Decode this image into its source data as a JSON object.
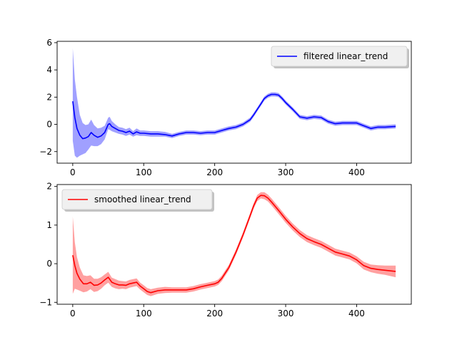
{
  "chart_data": [
    {
      "type": "line",
      "title": "",
      "xlabel": "",
      "ylabel": "",
      "xlim": [
        -22,
        477
      ],
      "ylim": [
        -2.85,
        6.1
      ],
      "xticks": [
        0,
        100,
        200,
        300,
        400
      ],
      "yticks": [
        -2,
        0,
        2,
        4,
        6
      ],
      "grid": false,
      "legend_position": "top-right",
      "line_color": "#0000ff",
      "band_color": "#a0a0ff",
      "series": [
        {
          "name": "filtered linear_trend",
          "x": [
            0,
            3,
            6,
            10,
            14,
            18,
            22,
            26,
            30,
            35,
            40,
            45,
            50,
            52,
            55,
            60,
            65,
            70,
            75,
            80,
            85,
            90,
            95,
            100,
            110,
            120,
            130,
            140,
            150,
            160,
            170,
            180,
            190,
            200,
            210,
            220,
            230,
            240,
            250,
            255,
            260,
            265,
            270,
            275,
            280,
            285,
            290,
            295,
            300,
            310,
            320,
            330,
            340,
            350,
            360,
            370,
            380,
            390,
            400,
            410,
            420,
            430,
            440,
            455
          ],
          "y": [
            1.7,
            0.5,
            -0.3,
            -0.8,
            -1.05,
            -1.0,
            -0.9,
            -0.6,
            -0.8,
            -0.95,
            -0.85,
            -0.6,
            0.0,
            0.05,
            -0.15,
            -0.3,
            -0.45,
            -0.5,
            -0.6,
            -0.5,
            -0.7,
            -0.55,
            -0.65,
            -0.65,
            -0.7,
            -0.7,
            -0.75,
            -0.85,
            -0.7,
            -0.6,
            -0.6,
            -0.65,
            -0.6,
            -0.6,
            -0.45,
            -0.3,
            -0.2,
            0.0,
            0.35,
            0.7,
            1.1,
            1.5,
            1.9,
            2.1,
            2.2,
            2.2,
            2.15,
            1.9,
            1.6,
            1.1,
            0.55,
            0.45,
            0.55,
            0.5,
            0.2,
            0.05,
            0.1,
            0.1,
            0.1,
            -0.1,
            -0.3,
            -0.2,
            -0.2,
            -0.15
          ],
          "lower": [
            -1.2,
            -2.3,
            -2.45,
            -2.3,
            -2.2,
            -2.1,
            -1.85,
            -1.55,
            -1.6,
            -1.6,
            -1.45,
            -1.1,
            -0.35,
            -0.4,
            -0.5,
            -0.6,
            -0.7,
            -0.75,
            -0.85,
            -0.75,
            -0.9,
            -0.8,
            -0.85,
            -0.85,
            -0.9,
            -0.9,
            -0.9,
            -1.0,
            -0.85,
            -0.75,
            -0.75,
            -0.8,
            -0.75,
            -0.75,
            -0.6,
            -0.45,
            -0.35,
            -0.15,
            0.2,
            0.55,
            0.95,
            1.35,
            1.75,
            1.95,
            2.05,
            2.05,
            2.0,
            1.75,
            1.45,
            0.95,
            0.4,
            0.3,
            0.4,
            0.35,
            0.05,
            -0.1,
            -0.05,
            -0.05,
            -0.05,
            -0.25,
            -0.45,
            -0.35,
            -0.35,
            -0.3
          ],
          "upper": [
            5.6,
            3.3,
            2.0,
            0.7,
            0.1,
            -0.05,
            0.0,
            0.35,
            -0.05,
            -0.3,
            -0.25,
            -0.1,
            0.5,
            0.55,
            0.25,
            0.0,
            -0.2,
            -0.25,
            -0.35,
            -0.25,
            -0.5,
            -0.3,
            -0.45,
            -0.45,
            -0.5,
            -0.5,
            -0.55,
            -0.7,
            -0.55,
            -0.45,
            -0.45,
            -0.5,
            -0.45,
            -0.45,
            -0.3,
            -0.15,
            -0.05,
            0.15,
            0.5,
            0.85,
            1.25,
            1.65,
            2.05,
            2.25,
            2.35,
            2.35,
            2.3,
            2.05,
            1.75,
            1.25,
            0.7,
            0.6,
            0.7,
            0.65,
            0.35,
            0.2,
            0.25,
            0.25,
            0.25,
            0.05,
            -0.15,
            -0.05,
            -0.05,
            0.0
          ]
        }
      ]
    },
    {
      "type": "line",
      "title": "",
      "xlabel": "",
      "ylabel": "",
      "xlim": [
        -22,
        477
      ],
      "ylim": [
        -1.05,
        2.05
      ],
      "xticks": [
        0,
        100,
        200,
        300,
        400
      ],
      "yticks": [
        -1,
        0,
        1,
        2
      ],
      "grid": false,
      "legend_position": "top-left",
      "line_color": "#ff0000",
      "band_color": "#ffa0a0",
      "series": [
        {
          "name": "smoothed linear_trend",
          "x": [
            0,
            3,
            6,
            10,
            15,
            20,
            25,
            30,
            35,
            40,
            45,
            50,
            55,
            60,
            65,
            70,
            75,
            80,
            85,
            90,
            95,
            100,
            105,
            110,
            120,
            130,
            140,
            150,
            160,
            170,
            180,
            190,
            200,
            205,
            210,
            220,
            230,
            240,
            250,
            255,
            260,
            265,
            270,
            275,
            280,
            290,
            300,
            310,
            320,
            330,
            340,
            350,
            360,
            370,
            380,
            390,
            400,
            410,
            420,
            430,
            440,
            455
          ],
          "y": [
            0.22,
            -0.05,
            -0.25,
            -0.4,
            -0.52,
            -0.52,
            -0.48,
            -0.56,
            -0.55,
            -0.5,
            -0.42,
            -0.35,
            -0.48,
            -0.52,
            -0.55,
            -0.55,
            -0.56,
            -0.52,
            -0.5,
            -0.48,
            -0.58,
            -0.65,
            -0.72,
            -0.75,
            -0.7,
            -0.68,
            -0.68,
            -0.68,
            -0.68,
            -0.65,
            -0.6,
            -0.56,
            -0.52,
            -0.48,
            -0.38,
            -0.1,
            0.3,
            0.75,
            1.25,
            1.5,
            1.7,
            1.77,
            1.76,
            1.7,
            1.6,
            1.38,
            1.15,
            0.95,
            0.78,
            0.65,
            0.57,
            0.5,
            0.4,
            0.3,
            0.25,
            0.2,
            0.1,
            -0.05,
            -0.12,
            -0.15,
            -0.17,
            -0.2
          ]
        }
      ],
      "band_halfwidth": [
        1.0,
        0.6,
        0.42,
        0.3,
        0.22,
        0.2,
        0.18,
        0.17,
        0.16,
        0.15,
        0.14,
        0.14,
        0.12,
        0.12,
        0.11,
        0.1,
        0.1,
        0.1,
        0.1,
        0.1,
        0.09,
        0.09,
        0.09,
        0.09,
        0.08,
        0.08,
        0.07,
        0.07,
        0.07,
        0.07,
        0.07,
        0.07,
        0.07,
        0.07,
        0.07,
        0.07,
        0.07,
        0.07,
        0.07,
        0.07,
        0.08,
        0.08,
        0.09,
        0.09,
        0.09,
        0.09,
        0.09,
        0.09,
        0.09,
        0.09,
        0.09,
        0.09,
        0.09,
        0.09,
        0.09,
        0.09,
        0.09,
        0.1,
        0.1,
        0.11,
        0.12,
        0.15
      ]
    }
  ]
}
